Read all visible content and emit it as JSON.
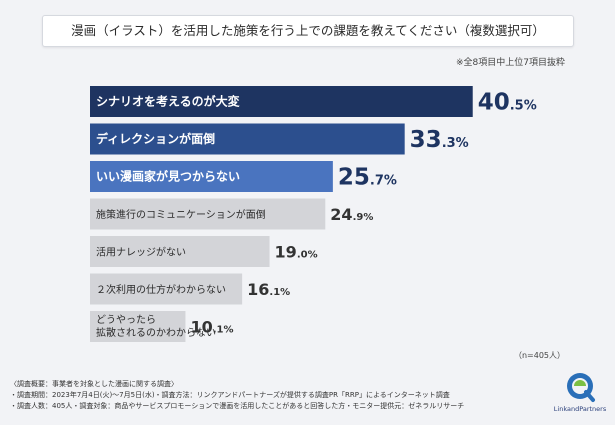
{
  "title": "漫画（イラスト）を活用した施策を行う上での課題を教えてください（複数選択可）",
  "note": "※全8項目中上位7項目抜粋",
  "sample_note": "（n=405人）",
  "footer": {
    "line1": "〈調査概要：事業者を対象とした漫画に関する調査〉",
    "line2": "・調査期間：2023年7月4日(火)～7月5日(水)・調査方法：リンクアンドパートナーズが提供する調査PR「RRP」によるインターネット調査",
    "line3": "・調査人数：405人・調査対象：商品やサービスプロモーションで漫画を活用したことがあると回答した方・モニター提供元：ゼネラルリサーチ"
  },
  "logo": {
    "text": "LinkandPartners",
    "icon": "linkandpartners-logo"
  },
  "colors": {
    "bar_rank1": "#1e3461",
    "bar_rank2": "#2c4f8e",
    "bar_rank3": "#4a74bf",
    "bar_other": "#d3d4d8",
    "value_top": "#1e3461",
    "value_other": "#333333"
  },
  "chart_data": {
    "type": "bar",
    "orientation": "horizontal",
    "categories": [
      "シナリオを考えるのが大変",
      "ディレクションが面倒",
      "いい漫画家が見つからない",
      "施策進行のコミュニケーションが面倒",
      "活用ナレッジがない",
      "２次利用の仕方がわからない",
      "どうやったら\n拡散されるのかわからない"
    ],
    "values": [
      40.5,
      33.3,
      25.7,
      24.9,
      19.0,
      16.1,
      10.1
    ],
    "value_labels": [
      {
        "int": "40",
        "dec": ".5%"
      },
      {
        "int": "33",
        "dec": ".3%"
      },
      {
        "int": "25",
        "dec": ".7%"
      },
      {
        "int": "24",
        "dec": ".9%"
      },
      {
        "int": "19",
        "dec": ".0%"
      },
      {
        "int": "16",
        "dec": ".1%"
      },
      {
        "int": "10",
        "dec": ".1%"
      }
    ],
    "xlim": [
      0,
      50
    ],
    "grid": false,
    "legend": "none"
  }
}
